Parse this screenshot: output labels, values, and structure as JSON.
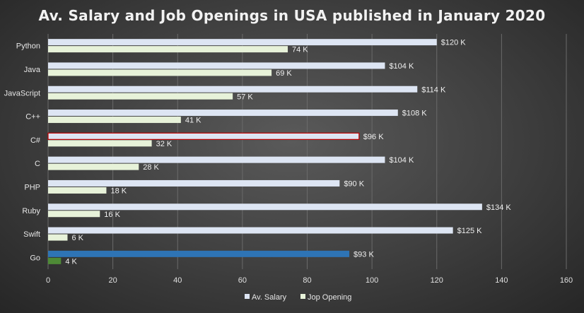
{
  "chart_data": {
    "type": "bar",
    "orientation": "horizontal",
    "title": "Av. Salary and Job Openings in USA published in January 2020",
    "categories": [
      "Python",
      "Java",
      "JavaScript",
      "C++",
      "C#",
      "C",
      "PHP",
      "Ruby",
      "Swift",
      "Go"
    ],
    "series": [
      {
        "name": "Av. Salary",
        "values": [
          120,
          104,
          114,
          108,
          96,
          104,
          90,
          134,
          125,
          93
        ],
        "labels": [
          "$120 K",
          "$104 K",
          "$114 K",
          "$108 K",
          "$96 K",
          "$104 K",
          "$90 K",
          "$134 K",
          "$125 K",
          "$93 K"
        ],
        "color": "#dde5f3",
        "highlight_colors": {
          "4": "#dde5f3",
          "9": "#2e74b5"
        },
        "highlight_borders": {
          "4": "#c00000"
        }
      },
      {
        "name": "Jop Opening",
        "values": [
          74,
          69,
          57,
          41,
          32,
          28,
          18,
          16,
          6,
          4
        ],
        "labels": [
          "74 K",
          "69 K",
          "57 K",
          "41 K",
          "32 K",
          "28 K",
          "18 K",
          "16 K",
          "6 K",
          "4 K"
        ],
        "color": "#e7f2d9",
        "highlight_colors": {
          "9": "#4e8a36"
        }
      }
    ],
    "xlim": [
      0,
      160
    ],
    "xticks": [
      0,
      20,
      40,
      60,
      80,
      100,
      120,
      140,
      160
    ],
    "xtick_labels": [
      "0",
      "20",
      "40",
      "60",
      "80",
      "100",
      "120",
      "140",
      "160"
    ],
    "grid": true,
    "legend": "bottom"
  }
}
